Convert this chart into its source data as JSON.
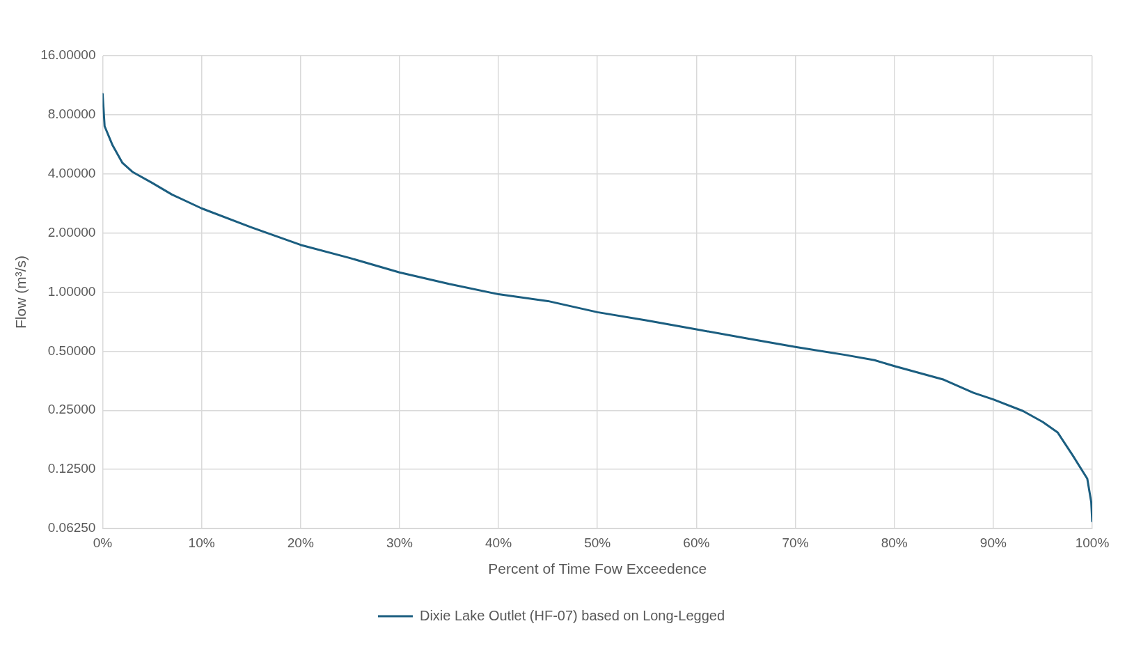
{
  "chart_data": {
    "type": "line",
    "xlabel": "Percent of Time Fow Exceedence",
    "ylabel": "Flow (m³/s)",
    "log": "y",
    "grid": true,
    "legend": "bottom",
    "marker": "none",
    "line_style": "solid",
    "xlim": [
      0,
      100
    ],
    "xticks": [
      {
        "value": 0,
        "label": "0%"
      },
      {
        "value": 10,
        "label": "10%"
      },
      {
        "value": 20,
        "label": "20%"
      },
      {
        "value": 30,
        "label": "30%"
      },
      {
        "value": 40,
        "label": "40%"
      },
      {
        "value": 50,
        "label": "50%"
      },
      {
        "value": 60,
        "label": "60%"
      },
      {
        "value": 70,
        "label": "70%"
      },
      {
        "value": 80,
        "label": "80%"
      },
      {
        "value": 90,
        "label": "90%"
      },
      {
        "value": 100,
        "label": "100%"
      }
    ],
    "ylim": [
      0.0625,
      16
    ],
    "yticks": [
      {
        "value": 0.0625,
        "label": "0.06250"
      },
      {
        "value": 0.125,
        "label": "0.12500"
      },
      {
        "value": 0.25,
        "label": "0.25000"
      },
      {
        "value": 0.5,
        "label": "0.50000"
      },
      {
        "value": 1,
        "label": "1.00000"
      },
      {
        "value": 2,
        "label": "2.00000"
      },
      {
        "value": 4,
        "label": "4.00000"
      },
      {
        "value": 8,
        "label": "8.00000"
      },
      {
        "value": 16,
        "label": "16.00000"
      }
    ],
    "series": [
      {
        "name": "Dixie Lake Outlet (HF-07) based on Long-Legged",
        "color": "#1b5e80",
        "x": [
          0,
          0.2,
          1,
          2,
          3,
          5,
          7,
          10,
          15,
          20,
          25,
          30,
          35,
          40,
          45,
          50,
          55,
          60,
          65,
          70,
          75,
          78,
          80,
          85,
          88,
          90,
          93,
          95,
          96.5,
          98,
          99.5,
          99.9,
          100
        ],
        "values": [
          10.2,
          7.0,
          5.6,
          4.55,
          4.1,
          3.6,
          3.14,
          2.67,
          2.14,
          1.74,
          1.49,
          1.26,
          1.1,
          0.975,
          0.9,
          0.79,
          0.717,
          0.646,
          0.582,
          0.526,
          0.479,
          0.45,
          0.42,
          0.358,
          0.307,
          0.284,
          0.248,
          0.218,
          0.193,
          0.148,
          0.112,
          0.085,
          0.068
        ]
      }
    ]
  }
}
